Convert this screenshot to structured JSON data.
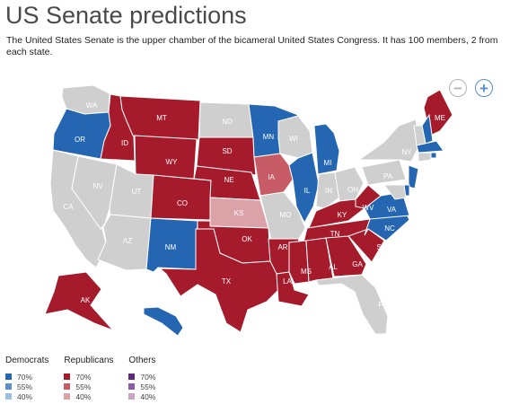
{
  "header": {
    "title": "US Senate predictions",
    "subtitle": "The United States Senate is the upper chamber of the bicameral United States Congress. It has 100 members, 2 from each state."
  },
  "zoom": {
    "out_label": "−",
    "in_label": "+"
  },
  "colors": {
    "dem70": "#2466b1",
    "dem55": "#5a8fc8",
    "dem40": "#9dbfe0",
    "rep70": "#a61b2b",
    "rep55": "#c75b66",
    "rep40": "#dba2a8",
    "oth70": "#5d2a7a",
    "oth55": "#8a5ca3",
    "oth40": "#c9a6c6",
    "none": "#cfcfcf"
  },
  "states": {
    "WA": {
      "label": "WA",
      "status": "none"
    },
    "OR": {
      "label": "OR",
      "status": "dem70"
    },
    "CA": {
      "label": "CA",
      "status": "none"
    },
    "NV": {
      "label": "NV",
      "status": "none"
    },
    "ID": {
      "label": "ID",
      "status": "rep70"
    },
    "MT": {
      "label": "MT",
      "status": "rep70"
    },
    "WY": {
      "label": "WY",
      "status": "rep70"
    },
    "UT": {
      "label": "UT",
      "status": "none"
    },
    "AZ": {
      "label": "AZ",
      "status": "none"
    },
    "CO": {
      "label": "CO",
      "status": "rep70"
    },
    "NM": {
      "label": "NM",
      "status": "dem70"
    },
    "ND": {
      "label": "ND",
      "status": "none"
    },
    "SD": {
      "label": "SD",
      "status": "rep70"
    },
    "NE": {
      "label": "NE",
      "status": "rep70"
    },
    "KS": {
      "label": "KS",
      "status": "rep40"
    },
    "OK": {
      "label": "OK",
      "status": "rep70"
    },
    "TX": {
      "label": "TX",
      "status": "rep70"
    },
    "MN": {
      "label": "MN",
      "status": "dem70"
    },
    "IA": {
      "label": "IA",
      "status": "rep55"
    },
    "MO": {
      "label": "MO",
      "status": "none"
    },
    "AR": {
      "label": "AR",
      "status": "rep70"
    },
    "LA": {
      "label": "LA",
      "status": "rep70"
    },
    "WI": {
      "label": "WI",
      "status": "none"
    },
    "IL": {
      "label": "IL",
      "status": "dem70"
    },
    "MI": {
      "label": "MI",
      "status": "dem70"
    },
    "IN": {
      "label": "IN",
      "status": "none"
    },
    "OH": {
      "label": "OH",
      "status": "none"
    },
    "KY": {
      "label": "KY",
      "status": "rep70"
    },
    "TN": {
      "label": "TN",
      "status": "rep70"
    },
    "MS": {
      "label": "MS",
      "status": "rep70"
    },
    "AL": {
      "label": "AL",
      "status": "rep70"
    },
    "GA": {
      "label": "GA",
      "status": "rep70"
    },
    "FL": {
      "label": "FL",
      "status": "none"
    },
    "SC": {
      "label": "SC",
      "status": "rep70"
    },
    "NC": {
      "label": "NC",
      "status": "dem70"
    },
    "VA": {
      "label": "VA",
      "status": "dem70"
    },
    "WV": {
      "label": "WV",
      "status": "rep70"
    },
    "PA": {
      "label": "PA",
      "status": "none"
    },
    "NY": {
      "label": "NY",
      "status": "none"
    },
    "ME": {
      "label": "ME",
      "status": "rep70"
    },
    "NH": {
      "label": "",
      "status": "dem70"
    },
    "VT": {
      "label": "",
      "status": "none"
    },
    "MA": {
      "label": "",
      "status": "dem70"
    },
    "RI": {
      "label": "",
      "status": "dem70"
    },
    "CT": {
      "label": "",
      "status": "none"
    },
    "NJ": {
      "label": "",
      "status": "dem70"
    },
    "DE": {
      "label": "",
      "status": "dem70"
    },
    "MD": {
      "label": "",
      "status": "none"
    },
    "AK": {
      "label": "AK",
      "status": "rep70"
    },
    "HI": {
      "label": "",
      "status": "dem70"
    }
  },
  "legend": {
    "groups": [
      {
        "title": "Democrats",
        "items": [
          {
            "label": "70%",
            "status": "dem70"
          },
          {
            "label": "55%",
            "status": "dem55"
          },
          {
            "label": "40%",
            "status": "dem40"
          }
        ]
      },
      {
        "title": "Republicans",
        "items": [
          {
            "label": "70%",
            "status": "rep70"
          },
          {
            "label": "55%",
            "status": "rep55"
          },
          {
            "label": "40%",
            "status": "rep40"
          }
        ]
      },
      {
        "title": "Others",
        "items": [
          {
            "label": "70%",
            "status": "oth70"
          },
          {
            "label": "55%",
            "status": "oth55"
          },
          {
            "label": "40%",
            "status": "oth40"
          }
        ]
      }
    ]
  }
}
